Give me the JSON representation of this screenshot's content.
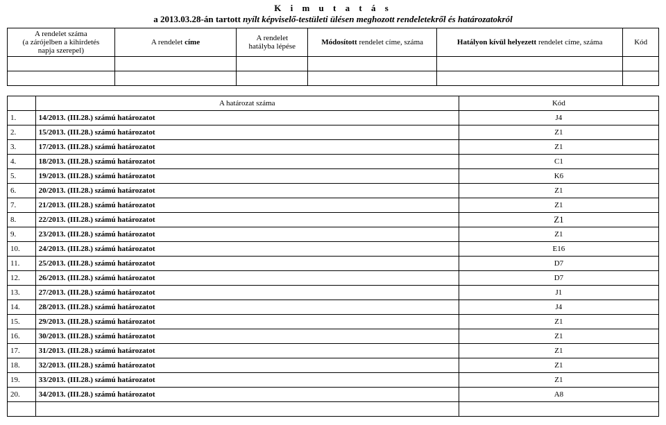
{
  "title": {
    "line1": "K i m u t a t á s",
    "line2_lead": "a 2013.03.28-án tartott ",
    "line2_italic": "nyílt képviselő-testületi ülésen meghozott rendeletekről és határozatokról"
  },
  "header": {
    "col1": {
      "l1": "A rendelet száma",
      "l2": "(a zárójelben a kihirdetés",
      "l3": "napja szerepel)"
    },
    "col2": {
      "pre": "A rendelet",
      "bold": "címe"
    },
    "col3": {
      "l1": "A rendelet",
      "l2": "hatályba lépése"
    },
    "col4": {
      "bold": "Módosított",
      "post": "rendelet címe, száma"
    },
    "col5": {
      "bold": "Hatályon kívül helyezett",
      "post": "rendelet címe, száma"
    },
    "col6": "Kód"
  },
  "body": {
    "header": {
      "label": "A határozat száma",
      "code": "Kód"
    },
    "rows": [
      {
        "n": "1.",
        "t": "14/2013. (III.28.) számú határozatot",
        "c": "J4"
      },
      {
        "n": "2.",
        "t": "15/2013. (III.28.) számú határozatot",
        "c": "Z1"
      },
      {
        "n": "3.",
        "t": "17/2013. (III.28.) számú határozatot",
        "c": "Z1"
      },
      {
        "n": "4.",
        "t": "18/2013. (III.28.) számú határozatot",
        "c": "C1"
      },
      {
        "n": "5.",
        "t": "19/2013. (III.28.) számú határozatot",
        "c": "K6"
      },
      {
        "n": "6.",
        "t": "20/2013. (III.28.) számú határozatot",
        "c": "Z1"
      },
      {
        "n": "7.",
        "t": "21/2013. (III.28.) számú határozatot",
        "c": "Z1"
      },
      {
        "n": "8.",
        "t": "22/2013. (III.28.) számú határozatot",
        "c": "Z1",
        "big": true
      },
      {
        "n": "9.",
        "t": "23/2013. (III.28.) számú határozatot",
        "c": "Z1"
      },
      {
        "n": "10.",
        "t": "24/2013. (III.28.) számú határozatot",
        "c": "E16"
      },
      {
        "n": "11.",
        "t": "25/2013. (III.28.) számú határozatot",
        "c": "D7"
      },
      {
        "n": "12.",
        "t": "26/2013. (III.28.) számú határozatot",
        "c": "D7"
      },
      {
        "n": "13.",
        "t": "27/2013. (III.28.) számú határozatot",
        "c": "J1"
      },
      {
        "n": "14.",
        "t": "28/2013. (III.28.) számú határozatot",
        "c": "J4"
      },
      {
        "n": "15.",
        "t": "29/2013. (III.28.) számú határozatot",
        "c": "Z1"
      },
      {
        "n": "16.",
        "t": "30/2013. (III.28.) számú határozatot",
        "c": "Z1"
      },
      {
        "n": "17.",
        "t": "31/2013. (III.28.) számú határozatot",
        "c": "Z1"
      },
      {
        "n": "18.",
        "t": "32/2013. (III.28.) számú határozatot",
        "c": "Z1"
      },
      {
        "n": "19.",
        "t": "33/2013. (III.28.) számú határozatot",
        "c": "Z1"
      },
      {
        "n": "20.",
        "t": "34/2013. (III.28.) számú határozatot",
        "c": "A8"
      }
    ]
  }
}
